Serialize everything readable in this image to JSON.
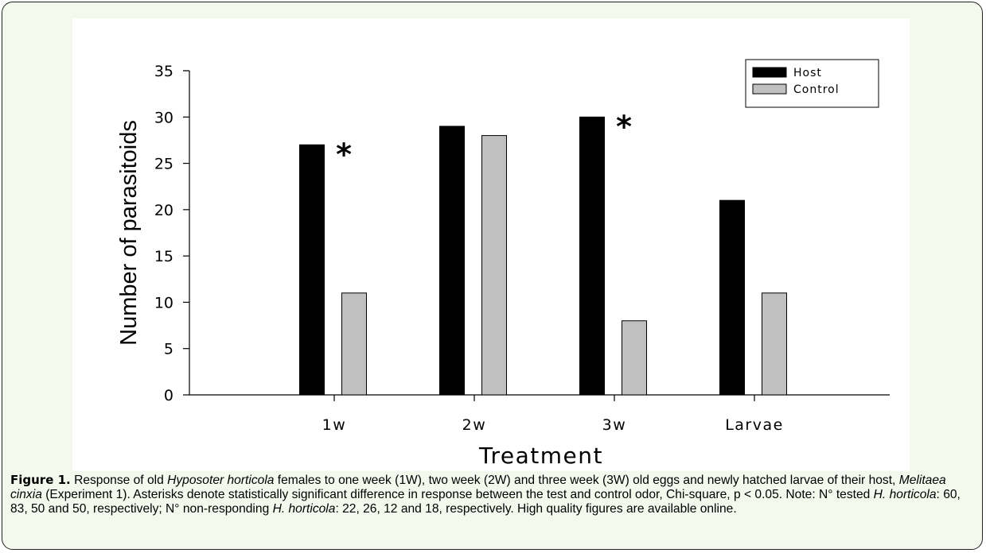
{
  "chart_data": {
    "type": "bar",
    "xlabel": "Treatment",
    "ylabel": "Number of parasitoids",
    "categories": [
      "1w",
      "2w",
      "3w",
      "Larvae"
    ],
    "series": [
      {
        "name": "Host",
        "color": "#000000",
        "values": [
          27,
          29,
          30,
          21
        ]
      },
      {
        "name": "Control",
        "color": "#c0c0c0",
        "values": [
          11,
          28,
          8,
          11
        ]
      }
    ],
    "ylim": [
      0,
      35
    ],
    "yticks": [
      0,
      5,
      10,
      15,
      20,
      25,
      30,
      35
    ],
    "legend": "upper right",
    "annotations": [
      {
        "text": "*",
        "category": "1w"
      },
      {
        "text": "*",
        "category": "3w"
      }
    ]
  },
  "caption": {
    "label": "Figure 1.",
    "segments": [
      {
        "text": " Response of old "
      },
      {
        "text": "Hyposoter horticola",
        "italic": true
      },
      {
        "text": " females to one week (1W), two week (2W) and three week (3W) old eggs and newly hatched larvae of their host, "
      },
      {
        "text": "Melitaea cinxia",
        "italic": true
      },
      {
        "text": " (Experiment 1). Asterisks denote statistically significant difference in response between the test and control odor, Chi-square, p < 0.05. Note: N° tested "
      },
      {
        "text": "H. horticola",
        "italic": true
      },
      {
        "text": ": 60, 83, 50 and 50, respectively; N° non-responding "
      },
      {
        "text": "H. horticola",
        "italic": true
      },
      {
        "text": ": 22, 26, 12 and 18, respectively. High quality figures are available online."
      }
    ]
  }
}
